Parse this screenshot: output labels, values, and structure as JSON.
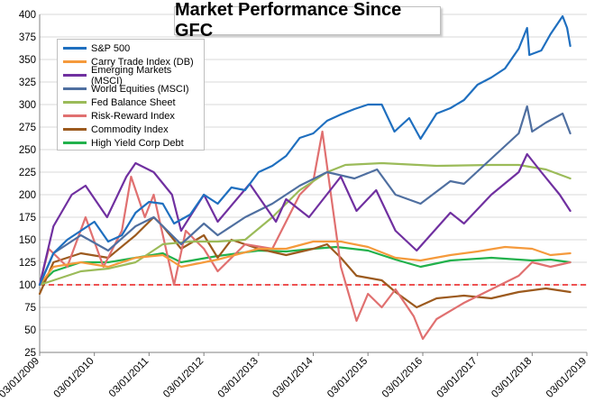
{
  "chart_data": {
    "type": "line",
    "title": "Market Performance Since GFC",
    "xlabel": "",
    "ylabel": "",
    "ylim": [
      25,
      400
    ],
    "yticks": [
      25,
      50,
      75,
      100,
      125,
      150,
      175,
      200,
      225,
      250,
      275,
      300,
      325,
      350,
      375,
      400
    ],
    "xlim": [
      "2009-03-01",
      "2019-03-01"
    ],
    "xticks": [
      "03/01/2009",
      "03/01/2010",
      "03/01/2011",
      "03/01/2012",
      "03/01/2013",
      "03/01/2014",
      "03/01/2015",
      "03/01/2016",
      "03/01/2017",
      "03/01/2018",
      "03/01/2019"
    ],
    "grid": true,
    "legend_position": "top-left",
    "reference_line": {
      "value": 100,
      "color": "#e81818",
      "style": "dashed"
    },
    "series": [
      {
        "name": "S&P 500",
        "color": "#1f6fbf",
        "points": [
          [
            "2009-03-01",
            100
          ],
          [
            "2009-06-01",
            135
          ],
          [
            "2009-09-01",
            150
          ],
          [
            "2009-12-01",
            160
          ],
          [
            "2010-03-01",
            170
          ],
          [
            "2010-06-01",
            148
          ],
          [
            "2010-09-01",
            155
          ],
          [
            "2010-12-01",
            180
          ],
          [
            "2011-03-01",
            192
          ],
          [
            "2011-06-01",
            190
          ],
          [
            "2011-08-15",
            168
          ],
          [
            "2011-12-01",
            178
          ],
          [
            "2012-03-01",
            200
          ],
          [
            "2012-06-01",
            190
          ],
          [
            "2012-09-01",
            208
          ],
          [
            "2012-12-01",
            205
          ],
          [
            "2013-03-01",
            225
          ],
          [
            "2013-06-01",
            232
          ],
          [
            "2013-09-01",
            243
          ],
          [
            "2013-12-01",
            263
          ],
          [
            "2014-03-01",
            268
          ],
          [
            "2014-06-01",
            282
          ],
          [
            "2014-09-01",
            289
          ],
          [
            "2014-12-01",
            295
          ],
          [
            "2015-03-01",
            300
          ],
          [
            "2015-06-01",
            300
          ],
          [
            "2015-08-25",
            270
          ],
          [
            "2015-12-01",
            285
          ],
          [
            "2016-02-15",
            262
          ],
          [
            "2016-06-01",
            290
          ],
          [
            "2016-09-01",
            296
          ],
          [
            "2016-12-01",
            305
          ],
          [
            "2017-03-01",
            322
          ],
          [
            "2017-06-01",
            330
          ],
          [
            "2017-09-01",
            340
          ],
          [
            "2017-12-01",
            362
          ],
          [
            "2018-01-26",
            385
          ],
          [
            "2018-02-10",
            355
          ],
          [
            "2018-05-01",
            360
          ],
          [
            "2018-07-01",
            378
          ],
          [
            "2018-09-20",
            398
          ],
          [
            "2018-10-20",
            385
          ],
          [
            "2018-11-10",
            365
          ]
        ]
      },
      {
        "name": "Carry Trade Index (DB)",
        "color": "#f59a3c",
        "points": [
          [
            "2009-03-01",
            100
          ],
          [
            "2009-06-01",
            120
          ],
          [
            "2009-12-01",
            125
          ],
          [
            "2010-06-01",
            120
          ],
          [
            "2010-12-01",
            130
          ],
          [
            "2011-06-01",
            133
          ],
          [
            "2011-10-01",
            120
          ],
          [
            "2012-06-01",
            128
          ],
          [
            "2013-03-01",
            140
          ],
          [
            "2013-09-01",
            140
          ],
          [
            "2014-03-01",
            148
          ],
          [
            "2014-09-01",
            148
          ],
          [
            "2015-03-01",
            142
          ],
          [
            "2015-09-01",
            130
          ],
          [
            "2016-02-15",
            127
          ],
          [
            "2016-09-01",
            133
          ],
          [
            "2017-03-01",
            137
          ],
          [
            "2017-09-01",
            142
          ],
          [
            "2018-03-01",
            140
          ],
          [
            "2018-07-01",
            133
          ],
          [
            "2018-11-10",
            135
          ]
        ]
      },
      {
        "name": "Emerging Markets (MSCI)",
        "color": "#7030a0",
        "points": [
          [
            "2009-03-01",
            100
          ],
          [
            "2009-06-01",
            165
          ],
          [
            "2009-10-01",
            200
          ],
          [
            "2010-01-01",
            210
          ],
          [
            "2010-05-25",
            175
          ],
          [
            "2010-10-01",
            220
          ],
          [
            "2010-12-01",
            235
          ],
          [
            "2011-04-01",
            225
          ],
          [
            "2011-08-01",
            200
          ],
          [
            "2011-10-01",
            160
          ],
          [
            "2012-03-01",
            200
          ],
          [
            "2012-06-01",
            170
          ],
          [
            "2013-01-01",
            212
          ],
          [
            "2013-06-25",
            170
          ],
          [
            "2013-09-01",
            195
          ],
          [
            "2014-02-01",
            175
          ],
          [
            "2014-09-01",
            220
          ],
          [
            "2014-12-15",
            182
          ],
          [
            "2015-04-25",
            205
          ],
          [
            "2015-09-01",
            160
          ],
          [
            "2016-01-20",
            138
          ],
          [
            "2016-09-01",
            180
          ],
          [
            "2016-12-01",
            168
          ],
          [
            "2017-06-01",
            200
          ],
          [
            "2017-12-01",
            225
          ],
          [
            "2018-01-26",
            245
          ],
          [
            "2018-05-01",
            225
          ],
          [
            "2018-09-01",
            200
          ],
          [
            "2018-11-10",
            182
          ]
        ]
      },
      {
        "name": "World Equities (MSCI)",
        "color": "#4f6fa0",
        "points": [
          [
            "2009-03-01",
            100
          ],
          [
            "2009-06-01",
            135
          ],
          [
            "2009-12-01",
            155
          ],
          [
            "2010-06-01",
            138
          ],
          [
            "2010-12-01",
            165
          ],
          [
            "2011-04-01",
            175
          ],
          [
            "2011-10-01",
            145
          ],
          [
            "2012-03-01",
            168
          ],
          [
            "2012-06-01",
            155
          ],
          [
            "2012-12-01",
            175
          ],
          [
            "2013-06-01",
            190
          ],
          [
            "2013-12-01",
            210
          ],
          [
            "2014-06-01",
            225
          ],
          [
            "2014-12-01",
            218
          ],
          [
            "2015-05-01",
            228
          ],
          [
            "2015-09-01",
            200
          ],
          [
            "2016-02-15",
            190
          ],
          [
            "2016-09-01",
            215
          ],
          [
            "2016-12-01",
            212
          ],
          [
            "2017-06-01",
            240
          ],
          [
            "2017-12-01",
            268
          ],
          [
            "2018-01-26",
            298
          ],
          [
            "2018-03-01",
            270
          ],
          [
            "2018-06-01",
            280
          ],
          [
            "2018-09-20",
            290
          ],
          [
            "2018-11-10",
            268
          ]
        ]
      },
      {
        "name": "Fed Balance Sheet",
        "color": "#9bbb59",
        "points": [
          [
            "2009-03-01",
            100
          ],
          [
            "2009-06-01",
            105
          ],
          [
            "2009-12-01",
            115
          ],
          [
            "2010-06-01",
            118
          ],
          [
            "2010-12-01",
            125
          ],
          [
            "2011-06-01",
            145
          ],
          [
            "2011-12-01",
            148
          ],
          [
            "2012-06-01",
            148
          ],
          [
            "2012-12-01",
            150
          ],
          [
            "2013-06-01",
            175
          ],
          [
            "2013-12-01",
            205
          ],
          [
            "2014-06-01",
            225
          ],
          [
            "2014-10-01",
            233
          ],
          [
            "2015-06-01",
            235
          ],
          [
            "2016-06-01",
            232
          ],
          [
            "2017-06-01",
            233
          ],
          [
            "2017-12-01",
            233
          ],
          [
            "2018-06-01",
            228
          ],
          [
            "2018-11-10",
            218
          ]
        ]
      },
      {
        "name": "Risk-Reward Index",
        "color": "#e07070",
        "points": [
          [
            "2009-03-01",
            100
          ],
          [
            "2009-05-01",
            140
          ],
          [
            "2009-09-01",
            120
          ],
          [
            "2010-01-01",
            175
          ],
          [
            "2010-05-01",
            120
          ],
          [
            "2010-09-01",
            160
          ],
          [
            "2010-11-01",
            220
          ],
          [
            "2011-02-01",
            175
          ],
          [
            "2011-04-01",
            200
          ],
          [
            "2011-08-15",
            100
          ],
          [
            "2011-11-01",
            160
          ],
          [
            "2012-03-01",
            140
          ],
          [
            "2012-06-01",
            115
          ],
          [
            "2012-12-01",
            145
          ],
          [
            "2013-06-01",
            140
          ],
          [
            "2013-12-01",
            200
          ],
          [
            "2014-03-01",
            215
          ],
          [
            "2014-05-01",
            270
          ],
          [
            "2014-07-01",
            195
          ],
          [
            "2014-09-01",
            120
          ],
          [
            "2014-12-15",
            60
          ],
          [
            "2015-03-01",
            90
          ],
          [
            "2015-06-01",
            75
          ],
          [
            "2015-09-01",
            95
          ],
          [
            "2016-01-01",
            65
          ],
          [
            "2016-03-01",
            40
          ],
          [
            "2016-06-01",
            62
          ],
          [
            "2016-12-01",
            80
          ],
          [
            "2017-06-01",
            95
          ],
          [
            "2017-12-01",
            110
          ],
          [
            "2018-03-01",
            125
          ],
          [
            "2018-07-01",
            120
          ],
          [
            "2018-11-10",
            125
          ]
        ]
      },
      {
        "name": "Commodity Index",
        "color": "#9c5a1e",
        "points": [
          [
            "2009-03-01",
            90
          ],
          [
            "2009-06-01",
            125
          ],
          [
            "2009-12-01",
            135
          ],
          [
            "2010-06-01",
            130
          ],
          [
            "2010-12-01",
            155
          ],
          [
            "2011-04-01",
            175
          ],
          [
            "2011-06-01",
            165
          ],
          [
            "2011-10-01",
            140
          ],
          [
            "2012-03-01",
            155
          ],
          [
            "2012-06-01",
            130
          ],
          [
            "2012-09-01",
            150
          ],
          [
            "2013-03-01",
            140
          ],
          [
            "2013-09-01",
            133
          ],
          [
            "2014-03-01",
            140
          ],
          [
            "2014-06-01",
            145
          ],
          [
            "2014-09-01",
            130
          ],
          [
            "2014-12-15",
            110
          ],
          [
            "2015-06-01",
            105
          ],
          [
            "2015-09-01",
            92
          ],
          [
            "2016-01-20",
            75
          ],
          [
            "2016-06-01",
            85
          ],
          [
            "2016-12-01",
            88
          ],
          [
            "2017-06-01",
            85
          ],
          [
            "2017-12-01",
            92
          ],
          [
            "2018-06-01",
            96
          ],
          [
            "2018-11-10",
            92
          ]
        ]
      },
      {
        "name": "High Yield Corp Debt",
        "color": "#22b14c",
        "points": [
          [
            "2009-03-01",
            100
          ],
          [
            "2009-06-01",
            115
          ],
          [
            "2009-12-01",
            125
          ],
          [
            "2010-06-01",
            125
          ],
          [
            "2010-12-01",
            130
          ],
          [
            "2011-06-01",
            135
          ],
          [
            "2011-10-01",
            125
          ],
          [
            "2012-06-01",
            132
          ],
          [
            "2013-03-01",
            138
          ],
          [
            "2013-09-01",
            137
          ],
          [
            "2014-03-01",
            140
          ],
          [
            "2014-08-01",
            142
          ],
          [
            "2015-03-01",
            138
          ],
          [
            "2015-09-01",
            128
          ],
          [
            "2016-02-15",
            120
          ],
          [
            "2016-09-01",
            127
          ],
          [
            "2017-06-01",
            130
          ],
          [
            "2018-03-01",
            127
          ],
          [
            "2018-07-01",
            128
          ],
          [
            "2018-11-10",
            125
          ]
        ]
      }
    ]
  }
}
